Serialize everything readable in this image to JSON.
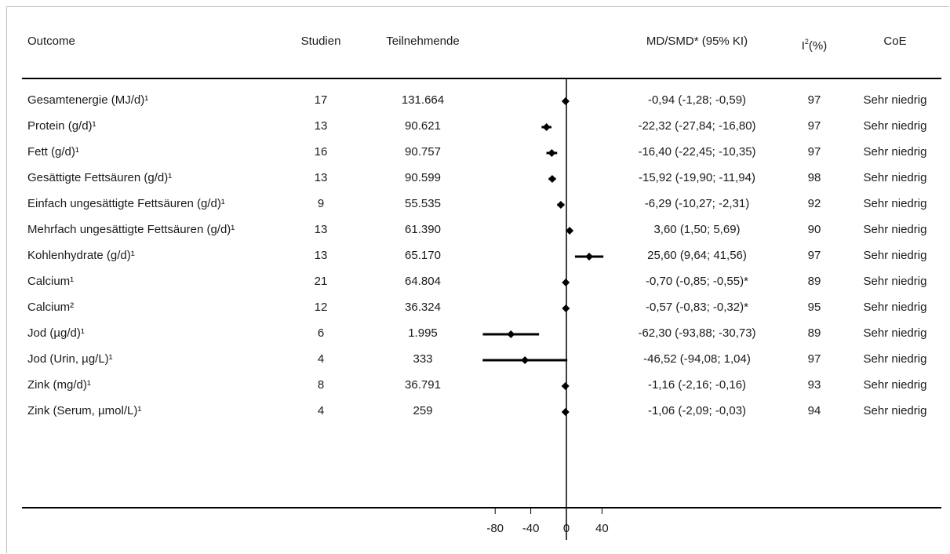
{
  "headers": {
    "outcome": "Outcome",
    "studies": "Studien",
    "participants": "Teilnehmende",
    "estimate": "MD/SMD* (95% KI)",
    "i2_main": "I",
    "i2_sup": "2",
    "i2_rest": "(%)",
    "coe": "CoE"
  },
  "rows": [
    {
      "outcome": "Gesamtenergie (MJ/d)¹",
      "studies": "17",
      "participants": "131.664",
      "estimate": "-0,94 (-1,28; -0,59)",
      "i2": "97",
      "coe": "Sehr niedrig"
    },
    {
      "outcome": "Protein (g/d)¹",
      "studies": "13",
      "participants": "90.621",
      "estimate": "-22,32 (-27,84; -16,80)",
      "i2": "97",
      "coe": "Sehr niedrig"
    },
    {
      "outcome": "Fett (g/d)¹",
      "studies": "16",
      "participants": "90.757",
      "estimate": "-16,40 (-22,45; -10,35)",
      "i2": "97",
      "coe": "Sehr niedrig"
    },
    {
      "outcome": "Gesättigte Fettsäuren (g/d)¹",
      "studies": "13",
      "participants": "90.599",
      "estimate": "-15,92 (-19,90; -11,94)",
      "i2": "98",
      "coe": "Sehr niedrig"
    },
    {
      "outcome": "Einfach ungesättigte Fettsäuren (g/d)¹",
      "studies": "9",
      "participants": "55.535",
      "estimate": "-6,29 (-10,27; -2,31)",
      "i2": "92",
      "coe": "Sehr niedrig"
    },
    {
      "outcome": "Mehrfach ungesättigte Fettsäuren (g/d)¹",
      "studies": "13",
      "participants": "61.390",
      "estimate": "3,60 (1,50; 5,69)",
      "i2": "90",
      "coe": "Sehr niedrig"
    },
    {
      "outcome": "Kohlenhydrate (g/d)¹",
      "studies": "13",
      "participants": "65.170",
      "estimate": "25,60 (9,64; 41,56)",
      "i2": "97",
      "coe": "Sehr niedrig"
    },
    {
      "outcome": "Calcium¹",
      "studies": "21",
      "participants": "64.804",
      "estimate": "-0,70 (-0,85; -0,55)*",
      "i2": "89",
      "coe": "Sehr niedrig"
    },
    {
      "outcome": "Calcium²",
      "studies": "12",
      "participants": "36.324",
      "estimate": "-0,57 (-0,83; -0,32)*",
      "i2": "95",
      "coe": "Sehr niedrig"
    },
    {
      "outcome": "Jod (µg/d)¹",
      "studies": "6",
      "participants": "1.995",
      "estimate": "-62,30 (-93,88; -30,73)",
      "i2": "89",
      "coe": "Sehr niedrig"
    },
    {
      "outcome": "Jod (Urin, µg/L)¹",
      "studies": "4",
      "participants": "333",
      "estimate": "-46,52 (-94,08; 1,04)",
      "i2": "97",
      "coe": "Sehr niedrig"
    },
    {
      "outcome": "Zink (mg/d)¹",
      "studies": "8",
      "participants": "36.791",
      "estimate": "-1,16 (-2,16; -0,16)",
      "i2": "93",
      "coe": "Sehr niedrig"
    },
    {
      "outcome": "Zink (Serum, µmol/L)¹",
      "studies": "4",
      "participants": "259",
      "estimate": "-1,06 (-2,09; -0,03)",
      "i2": "94",
      "coe": "Sehr niedrig"
    }
  ],
  "chart_data": {
    "type": "forest",
    "title": "",
    "xlabel": "",
    "ylabel": "",
    "xticks": [
      -80,
      -40,
      0,
      40
    ],
    "xlim": [
      -90,
      45
    ],
    "reference_line": 0,
    "marker_color": "#000000",
    "points": [
      {
        "estimate": -0.94,
        "lower": -1.28,
        "upper": -0.59
      },
      {
        "estimate": -22.32,
        "lower": -27.84,
        "upper": -16.8
      },
      {
        "estimate": -16.4,
        "lower": -22.45,
        "upper": -10.35
      },
      {
        "estimate": -15.92,
        "lower": -19.9,
        "upper": -11.94
      },
      {
        "estimate": -6.29,
        "lower": -10.27,
        "upper": -2.31
      },
      {
        "estimate": 3.6,
        "lower": 1.5,
        "upper": 5.69
      },
      {
        "estimate": 25.6,
        "lower": 9.64,
        "upper": 41.56
      },
      {
        "estimate": -0.7,
        "lower": -0.85,
        "upper": -0.55
      },
      {
        "estimate": -0.57,
        "lower": -0.83,
        "upper": -0.32
      },
      {
        "estimate": -62.3,
        "lower": -93.88,
        "upper": -30.73
      },
      {
        "estimate": -46.52,
        "lower": -94.08,
        "upper": 1.04
      },
      {
        "estimate": -1.16,
        "lower": -2.16,
        "upper": -0.16
      },
      {
        "estimate": -1.06,
        "lower": -2.09,
        "upper": -0.03
      }
    ]
  }
}
